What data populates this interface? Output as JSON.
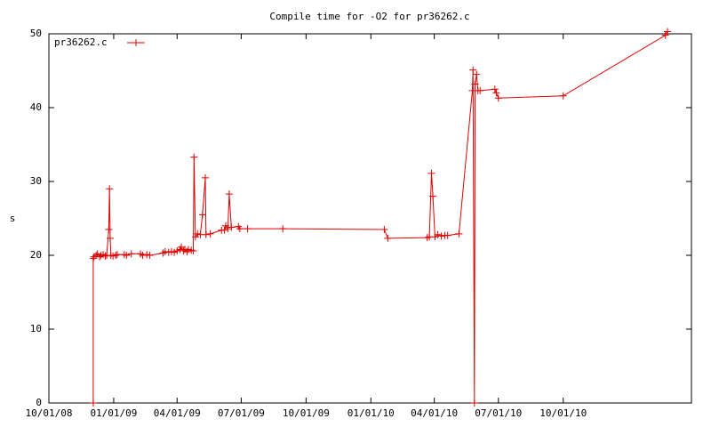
{
  "chart_data": {
    "type": "line",
    "title": "Compile time for -O2 for pr36262.c",
    "y_label": "s",
    "legend": "top-left",
    "xlim": [
      "2008-10-01",
      "2011-04-01"
    ],
    "xticks": [
      {
        "value": "2008-10-01",
        "label": "10/01/08"
      },
      {
        "value": "2009-01-01",
        "label": "01/01/09"
      },
      {
        "value": "2009-04-01",
        "label": "04/01/09"
      },
      {
        "value": "2009-07-01",
        "label": "07/01/09"
      },
      {
        "value": "2009-10-01",
        "label": "10/01/09"
      },
      {
        "value": "2010-01-01",
        "label": "01/01/10"
      },
      {
        "value": "2010-04-01",
        "label": "04/01/10"
      },
      {
        "value": "2010-07-01",
        "label": "07/01/10"
      },
      {
        "value": "2010-10-01",
        "label": "10/01/10"
      }
    ],
    "ylim": [
      0,
      50
    ],
    "yticks": [
      0,
      10,
      20,
      30,
      40,
      50
    ],
    "x": [
      "2008-12-03",
      "2008-12-03",
      "2008-12-04",
      "2008-12-07",
      "2008-12-09",
      "2008-12-12",
      "2008-12-14",
      "2008-12-17",
      "2008-12-20",
      "2008-12-22",
      "2008-12-25",
      "2008-12-26",
      "2008-12-27",
      "2008-12-28",
      "2008-12-31",
      "2009-01-04",
      "2009-01-06",
      "2009-01-16",
      "2009-01-19",
      "2009-01-26",
      "2009-02-08",
      "2009-02-11",
      "2009-02-17",
      "2009-02-21",
      "2009-03-12",
      "2009-03-15",
      "2009-03-20",
      "2009-03-24",
      "2009-03-28",
      "2009-04-01",
      "2009-04-05",
      "2009-04-07",
      "2009-04-10",
      "2009-04-12",
      "2009-04-15",
      "2009-04-17",
      "2009-04-21",
      "2009-04-24",
      "2009-04-25",
      "2009-04-27",
      "2009-04-30",
      "2009-05-04",
      "2009-05-07",
      "2009-05-11",
      "2009-05-12",
      "2009-05-18",
      "2009-06-03",
      "2009-06-07",
      "2009-06-09",
      "2009-06-12",
      "2009-06-14",
      "2009-06-17",
      "2009-06-27",
      "2009-06-29",
      "2009-07-10",
      "2009-08-29",
      "2010-01-20",
      "2010-01-25",
      "2010-03-22",
      "2010-03-25",
      "2010-03-28",
      "2010-03-30",
      "2010-04-02",
      "2010-04-06",
      "2010-04-11",
      "2010-04-16",
      "2010-04-20",
      "2010-05-06",
      "2010-05-25",
      "2010-05-26",
      "2010-05-28",
      "2010-05-29",
      "2010-05-31",
      "2010-06-02",
      "2010-06-05",
      "2010-06-26",
      "2010-06-28",
      "2010-07-01",
      "2010-10-01",
      "2011-02-23",
      "2011-02-26"
    ],
    "series": [
      {
        "name": "pr36262.c",
        "color": "#dd0000",
        "values": [
          0,
          19.6,
          19.8,
          20,
          20.2,
          19.8,
          20,
          20.1,
          19.9,
          20,
          23.5,
          29,
          22.3,
          20,
          19.9,
          20,
          20.1,
          20.1,
          20,
          20.2,
          20.2,
          20,
          20.1,
          20,
          20.3,
          20.5,
          20.4,
          20.5,
          20.4,
          20.6,
          20.8,
          21.1,
          20.6,
          20.8,
          20.5,
          20.8,
          20.7,
          20.6,
          33.3,
          22.5,
          22.9,
          22.8,
          25.5,
          30.5,
          22.8,
          22.9,
          23.4,
          23.4,
          24,
          23.6,
          28.3,
          23.8,
          23.9,
          23.6,
          23.6,
          23.6,
          23.5,
          22.3,
          22.4,
          22.5,
          31.1,
          28,
          22.5,
          22.8,
          22.6,
          22.7,
          22.7,
          22.9,
          42.3,
          45.1,
          0,
          43.2,
          44.5,
          42.3,
          42.3,
          42.5,
          42,
          41.3,
          41.6,
          49.8,
          50.3
        ]
      }
    ]
  }
}
